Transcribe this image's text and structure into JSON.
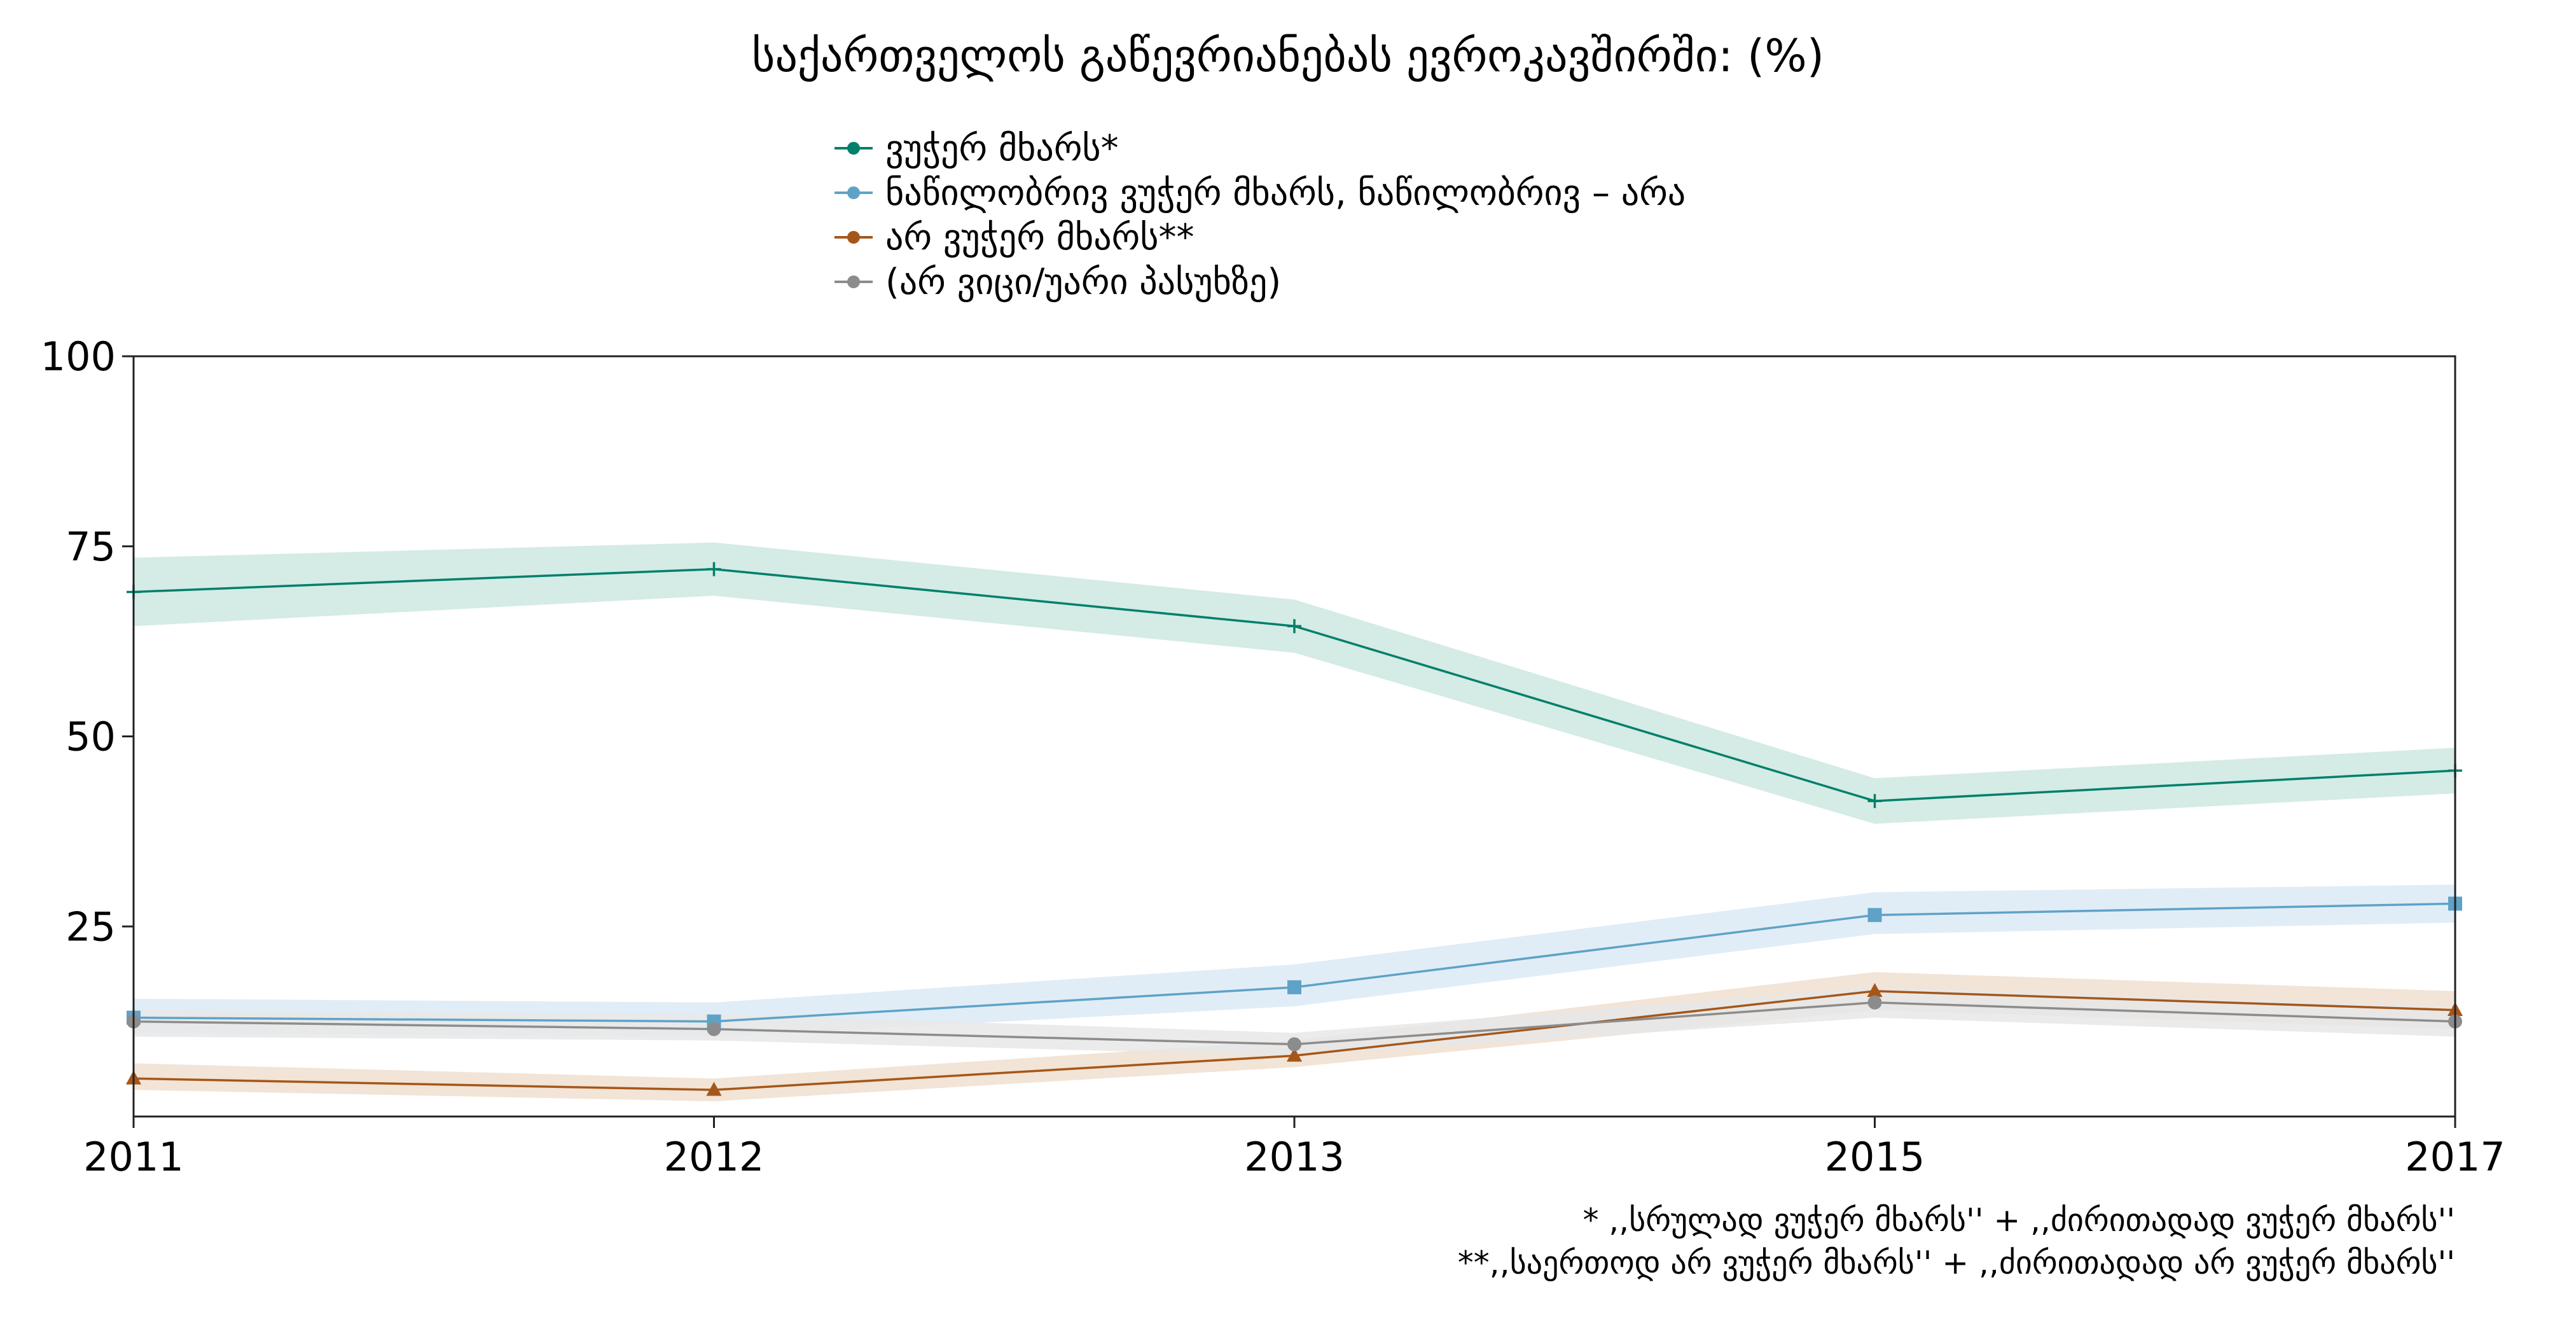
{
  "chart_data": {
    "type": "line",
    "title": "საქართველოს გაწევრიანებას ევროკავშირში: (%)",
    "xlabel": "",
    "ylabel": "",
    "x": [
      "2011",
      "2012",
      "2013",
      "2015",
      "2017"
    ],
    "ylim": [
      0,
      100
    ],
    "yticks": [
      25,
      50,
      75,
      100
    ],
    "grid": false,
    "legend_position": "top-center",
    "series": [
      {
        "name": "ვუჭერ მხარს*",
        "color": "#00806b",
        "band_color": "#cde8e2",
        "marker": "plus",
        "values": [
          69,
          72,
          64.5,
          41.5,
          45.5
        ],
        "lower": [
          64.5,
          68.5,
          61,
          38.5,
          42.5
        ],
        "upper": [
          73.5,
          75.5,
          68,
          44.5,
          48.5
        ]
      },
      {
        "name": "ნაწილობრივ ვუჭერ მხარს, ნაწილობრივ – არა",
        "color": "#5fa2c8",
        "band_color": "#dceaf4",
        "marker": "square",
        "values": [
          13,
          12.5,
          17,
          26.5,
          28
        ],
        "lower": [
          11,
          10.5,
          14.5,
          24,
          25.5
        ],
        "upper": [
          15.5,
          15,
          20,
          29.5,
          30.5
        ]
      },
      {
        "name": "არ ვუჭერ მხარს**",
        "color": "#a5571a",
        "band_color": "#f0dfcf",
        "marker": "triangle",
        "values": [
          5,
          3.5,
          8,
          16.5,
          14
        ],
        "lower": [
          3.5,
          2,
          6.5,
          14,
          11.5
        ],
        "upper": [
          7,
          5,
          10,
          19,
          16.5
        ]
      },
      {
        "name": "(არ ვიცი/უარი პასუხზე)",
        "color": "#8c8c8c",
        "band_color": "#e7e7e7",
        "marker": "circle",
        "values": [
          12.5,
          11.5,
          9.5,
          15,
          12.5
        ],
        "lower": [
          10.5,
          10,
          8,
          13,
          10.5
        ],
        "upper": [
          14,
          13.5,
          11,
          17,
          14.5
        ]
      }
    ],
    "footnotes": [
      "* ,,სრულად ვუჭერ მხარს'' + ,,ძირითადად ვუჭერ მხარს''",
      "**,,საერთოდ არ ვუჭერ მხარს'' + ,,ძირითადად არ ვუჭერ მხარს''"
    ]
  }
}
